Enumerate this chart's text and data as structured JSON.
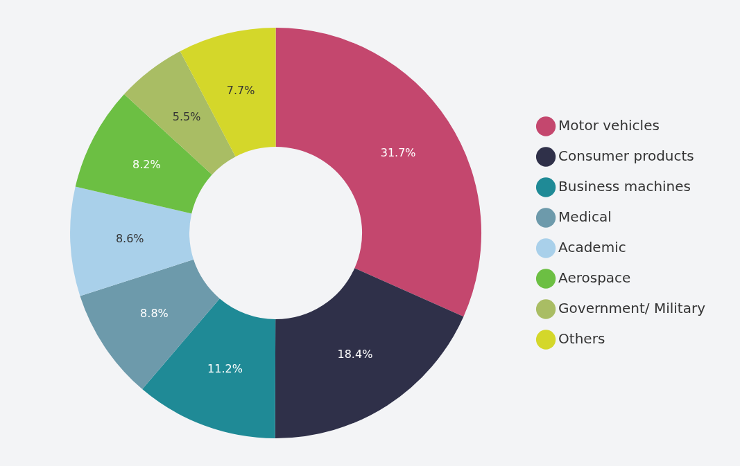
{
  "chart_data": {
    "type": "donut",
    "categories": [
      "Motor vehicles",
      "Consumer products",
      "Business machines",
      "Medical",
      "Academic",
      "Aerospace",
      "Government/ Military",
      "Others"
    ],
    "values": [
      31.7,
      18.4,
      11.2,
      8.8,
      8.6,
      8.2,
      5.5,
      7.7
    ],
    "value_labels": [
      "31.7%",
      "18.4%",
      "11.2%",
      "8.8%",
      "8.6%",
      "8.2%",
      "5.5%",
      "7.7%"
    ],
    "colors": [
      "#c4476e",
      "#2f3049",
      "#1f8a96",
      "#6d9aab",
      "#a9d0ea",
      "#6cbf43",
      "#a9bd64",
      "#d4d72a"
    ],
    "legend": "right"
  }
}
